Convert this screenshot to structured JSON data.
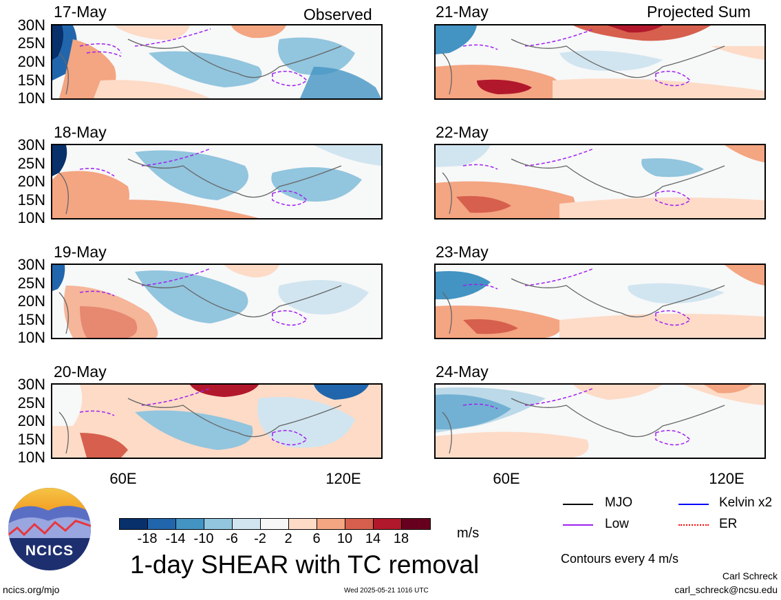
{
  "header": {
    "observed_label": "Observed",
    "projected_label": "Projected Sum"
  },
  "panels": {
    "left": [
      "17-May",
      "18-May",
      "19-May",
      "20-May"
    ],
    "right": [
      "21-May",
      "22-May",
      "23-May",
      "24-May"
    ]
  },
  "lat_labels": [
    "30N",
    "25N",
    "20N",
    "15N",
    "10N"
  ],
  "lon_labels": [
    "60E",
    "120E"
  ],
  "colorbar": {
    "colors": [
      "#08306b",
      "#2166ac",
      "#4393c3",
      "#92c5de",
      "#d1e5f0",
      "#f7f7f7",
      "#fddbc7",
      "#f4a582",
      "#d6604d",
      "#b2182b",
      "#67001f"
    ],
    "labels": [
      "-18",
      "-14",
      "-10",
      "-6",
      "-2",
      "2",
      "6",
      "10",
      "14",
      "18"
    ],
    "unit": "m/s"
  },
  "legend": {
    "items": [
      {
        "label": "MJO",
        "color": "#000000"
      },
      {
        "label": "Kelvin x2",
        "color": "#0000ff"
      },
      {
        "label": "Low",
        "color": "#a020f0"
      },
      {
        "label": "ER",
        "color": "#ff0000"
      }
    ],
    "contours_note": "Contours every 4 m/s"
  },
  "footer": {
    "title": "1-day SHEAR with TC removal",
    "logo_text": "NCICS",
    "url": "ncics.org/mjo",
    "timestamp": "Wed 2025-05-21 1016 UTC",
    "author": "Carl Schreck",
    "email": "carl_schreck@ncsu.edu"
  }
}
